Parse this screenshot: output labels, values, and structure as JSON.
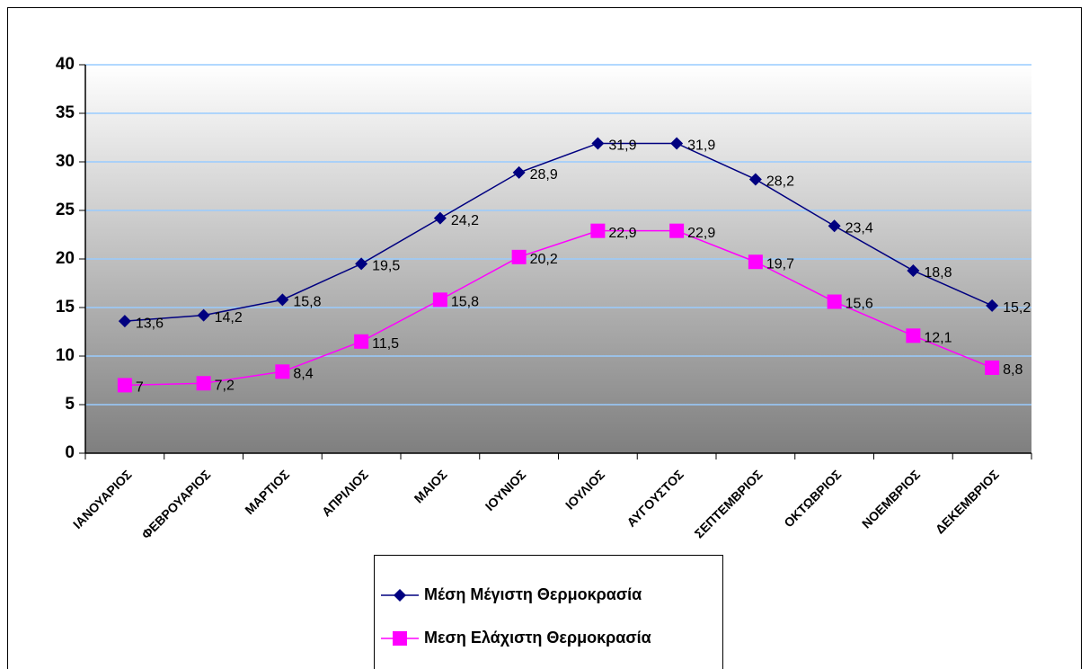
{
  "chart_data": {
    "type": "line",
    "categories": [
      "ΙΑΝΟΥΑΡΙΟΣ",
      "ΦΕΒΡΟΥΑΡΙΟΣ",
      "ΜΑΡΤΙΟΣ",
      "ΑΠΡΙΛΙΟΣ",
      "ΜΑΙΟΣ",
      "ΙΟΥΝΙΟΣ",
      "ΙΟΥΛΙΟΣ",
      "ΑΥΓΟΥΣΤΟΣ",
      "ΣΕΠΤΕΜΒΡΙΟΣ",
      "ΟΚΤΩΒΡΙΟΣ",
      "ΝΟΕΜΒΡΙΟΣ",
      "ΔΕΚΕΜΒΡΙΟΣ"
    ],
    "series": [
      {
        "name": "Μέση Μέγιστη Θερμοκρασία",
        "color": "#000080",
        "marker": "diamond",
        "values": [
          13.6,
          14.2,
          15.8,
          19.5,
          24.2,
          28.9,
          31.9,
          31.9,
          28.2,
          23.4,
          18.8,
          15.2
        ],
        "value_labels": [
          "13,6",
          "14,2",
          "15,8",
          "19,5",
          "24,2",
          "28,9",
          "31,9",
          "31,9",
          "28,2",
          "23,4",
          "18,8",
          "15,2"
        ]
      },
      {
        "name": "Μεση Ελάχιστη Θερμοκρασία",
        "color": "#ff00ff",
        "marker": "square",
        "values": [
          7,
          7.2,
          8.4,
          11.5,
          15.8,
          20.2,
          22.9,
          22.9,
          19.7,
          15.6,
          12.1,
          8.8
        ],
        "value_labels": [
          "7",
          "7,2",
          "8,4",
          "11,5",
          "15,8",
          "20,2",
          "22,9",
          "22,9",
          "19,7",
          "15,6",
          "12,1",
          "8,8"
        ]
      }
    ],
    "ylim": [
      0,
      40
    ],
    "yticks": [
      0,
      5,
      10,
      15,
      20,
      25,
      30,
      35,
      40
    ],
    "grid": true,
    "legend": "bottom"
  }
}
